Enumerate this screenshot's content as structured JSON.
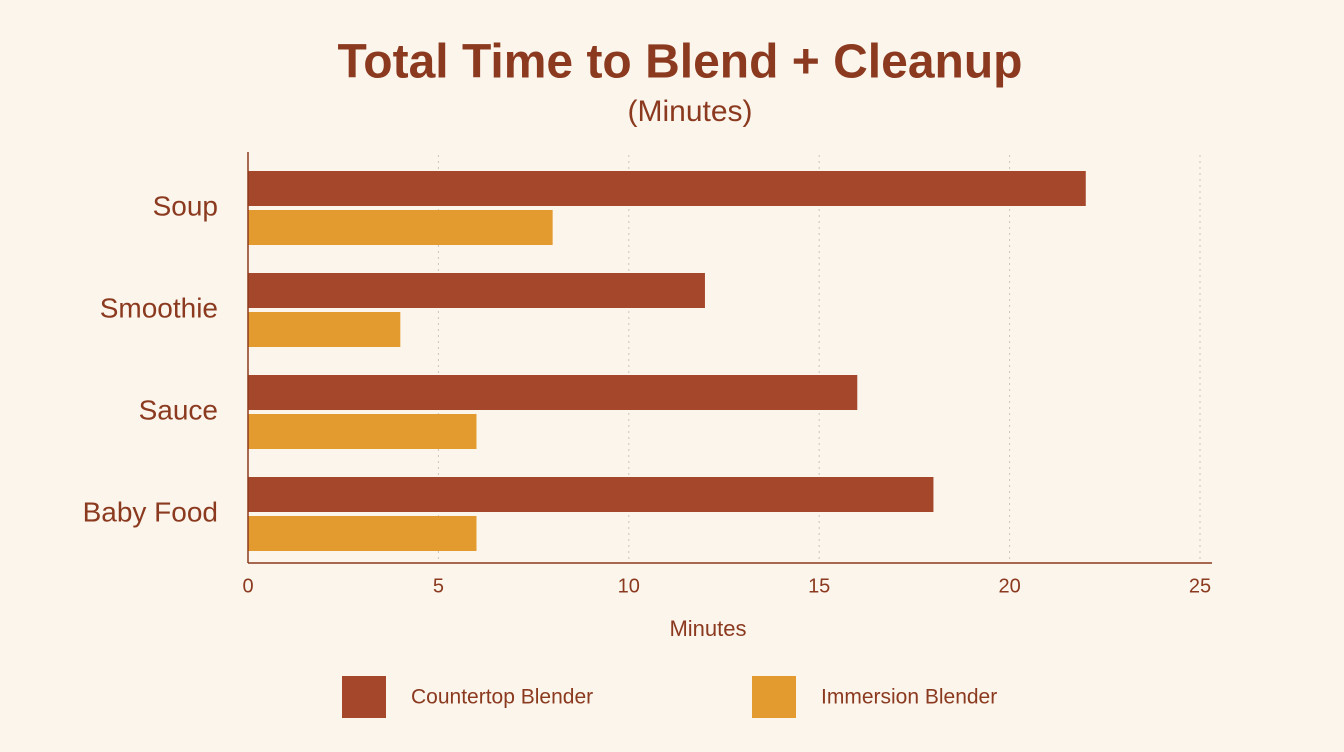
{
  "chart_data": {
    "type": "hbar",
    "title": "Total Time to Blend + Cleanup",
    "subtitle": "(Minutes)",
    "x_label": "Minutes",
    "categories": [
      "Soup",
      "Smoothie",
      "Sauce",
      "Baby Food"
    ],
    "series": [
      {
        "name": "Countertop Blender",
        "color": "#a5472a",
        "values": [
          22,
          12,
          16,
          18
        ]
      },
      {
        "name": "Immersion Blender",
        "color": "#e39a2e",
        "values": [
          8,
          4,
          6,
          6
        ]
      }
    ],
    "xlim": [
      0,
      25
    ],
    "xticks": [
      0,
      5,
      10,
      15,
      20,
      25
    ],
    "grid": true
  }
}
